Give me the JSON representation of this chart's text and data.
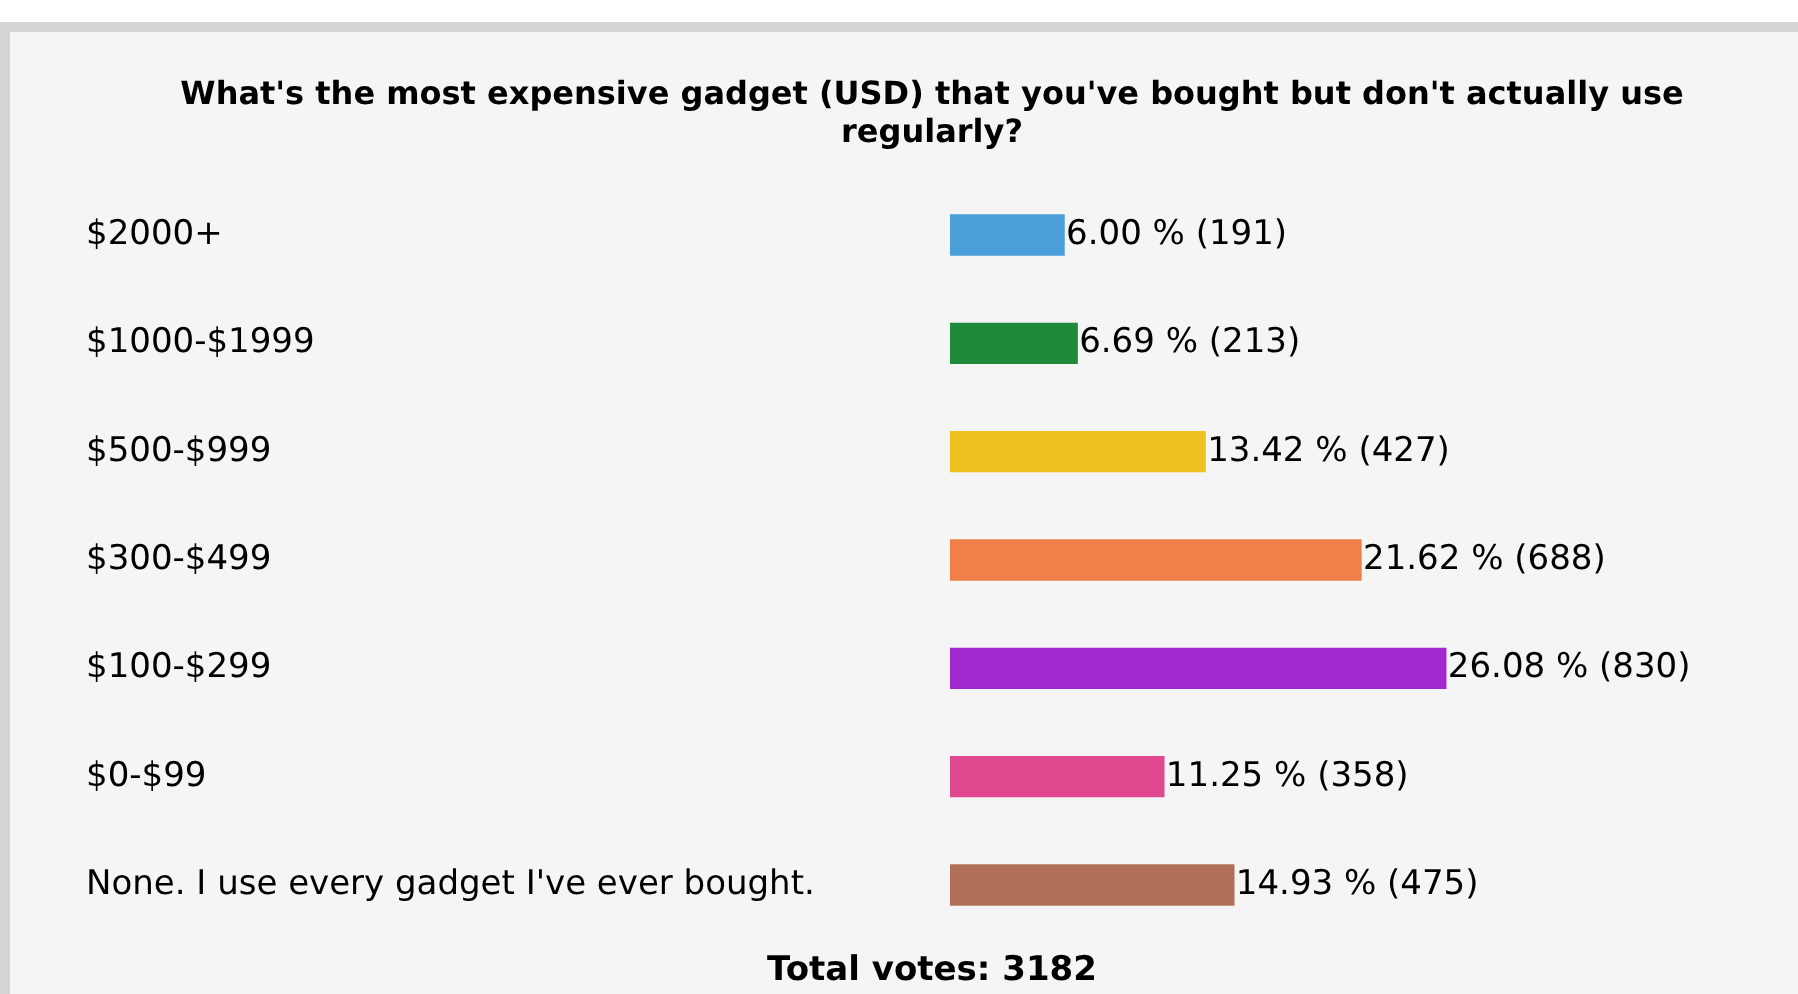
{
  "chart_data": {
    "type": "bar",
    "orientation": "horizontal",
    "title": "What's the most expensive gadget (USD) that you've bought but don't actually use regularly?",
    "categories": [
      "$2000+",
      "$1000-$1999",
      "$500-$999",
      "$300-$499",
      "$100-$299",
      "$0-$99",
      "None. I use every gadget I've ever bought."
    ],
    "values": [
      6.0,
      6.69,
      13.42,
      21.62,
      26.08,
      11.25,
      14.93
    ],
    "colors": [
      "#4a9fd8",
      "#1e8a3a",
      "#f0c020",
      "#f08048",
      "#a428d0",
      "#e04890",
      "#b07058"
    ],
    "value_labels": [
      "6.00 % (191)",
      "6.69 % (213)",
      "13.42 % (427)",
      "21.62 % (688)",
      "26.08 % (830)",
      "11.25 % (358)",
      "14.93 % (475)"
    ],
    "annotations": [
      "Total votes: 3182"
    ],
    "grid": false,
    "legend": false
  }
}
